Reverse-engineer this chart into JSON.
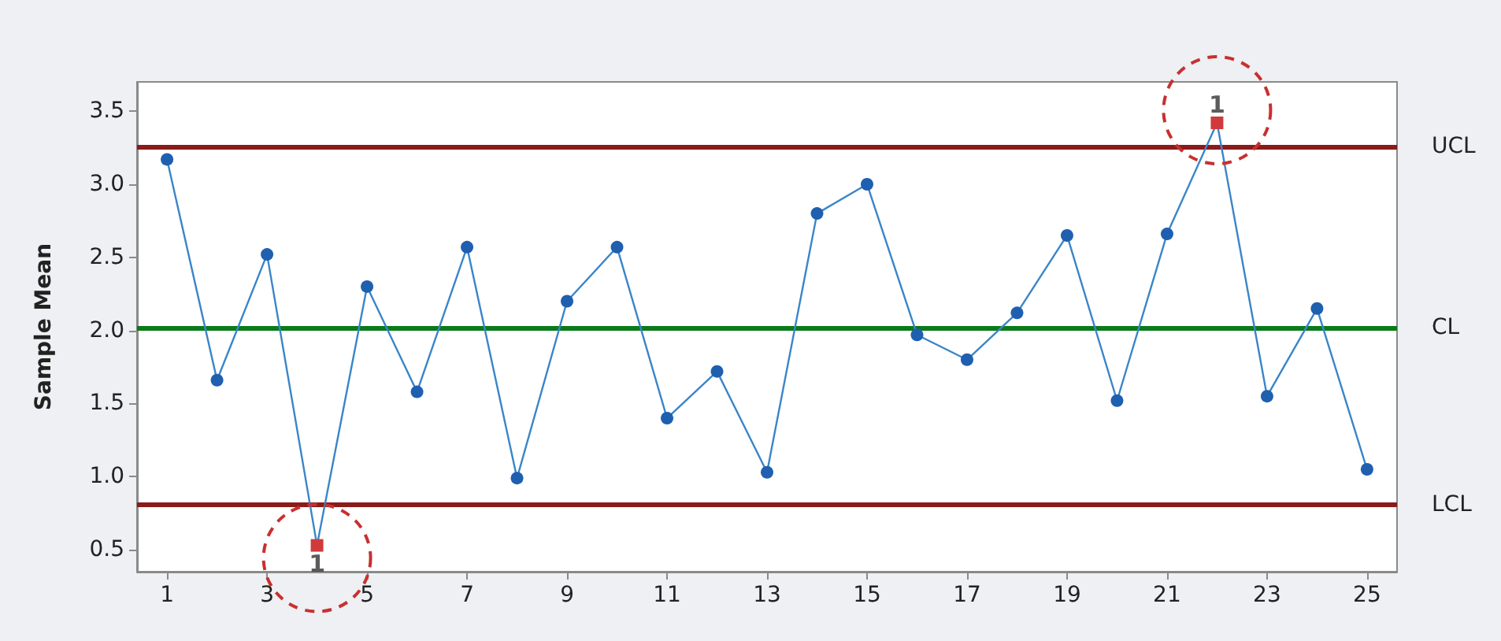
{
  "chart_data": {
    "type": "line",
    "ylabel": "Sample Mean",
    "x": [
      1,
      2,
      3,
      4,
      5,
      6,
      7,
      8,
      9,
      10,
      11,
      12,
      13,
      14,
      15,
      16,
      17,
      18,
      19,
      20,
      21,
      22,
      23,
      24,
      25
    ],
    "series": [
      {
        "color": "#1f5fb0",
        "colors": [
          "#1f5fb0",
          "#1f5fb0",
          "#1f5fb0",
          "#d03a3a",
          "#1f5fb0",
          "#1f5fb0",
          "#1f5fb0",
          "#1f5fb0",
          "#1f5fb0",
          "#1f5fb0",
          "#1f5fb0",
          "#1f5fb0",
          "#1f5fb0",
          "#1f5fb0",
          "#1f5fb0",
          "#1f5fb0",
          "#1f5fb0",
          "#1f5fb0",
          "#1f5fb0",
          "#1f5fb0",
          "#1f5fb0",
          "#d03a3a",
          "#1f5fb0",
          "#1f5fb0",
          "#1f5fb0"
        ],
        "values": [
          3.17,
          1.66,
          2.52,
          0.53,
          2.3,
          1.58,
          2.57,
          0.99,
          2.2,
          2.57,
          1.4,
          1.72,
          1.03,
          2.8,
          3.0,
          1.97,
          1.8,
          2.12,
          2.65,
          1.52,
          2.66,
          3.42,
          1.55,
          2.15,
          1.05
        ]
      }
    ],
    "xlim": [
      0.4,
      25.6
    ],
    "xticks": [
      1,
      3,
      5,
      7,
      9,
      11,
      13,
      15,
      17,
      19,
      21,
      23,
      25
    ],
    "ylim": [
      0.35,
      3.7
    ],
    "yticks": [
      0.5,
      {
        "value": 1,
        "label": "1.0"
      },
      1.5,
      {
        "value": 2,
        "label": "2.0"
      },
      2.5,
      {
        "value": 3,
        "label": "3.0"
      },
      3.5
    ],
    "ref_lines": [
      {
        "axis": "y",
        "value": 3.26,
        "label": "UCL",
        "color": "#8b1a1a"
      },
      {
        "axis": "y",
        "value": 2.02,
        "label": "CL",
        "color": "#0a7a1a"
      },
      {
        "axis": "y",
        "value": 0.81,
        "label": "LCL",
        "color": "#8b1a1a"
      }
    ],
    "annotations": [
      {
        "text": "1",
        "x": 4,
        "y": 0.53
      },
      {
        "text": "1",
        "x": 22,
        "y": 3.42
      }
    ],
    "marker": "circle",
    "line_style": "solid",
    "grid": false
  }
}
